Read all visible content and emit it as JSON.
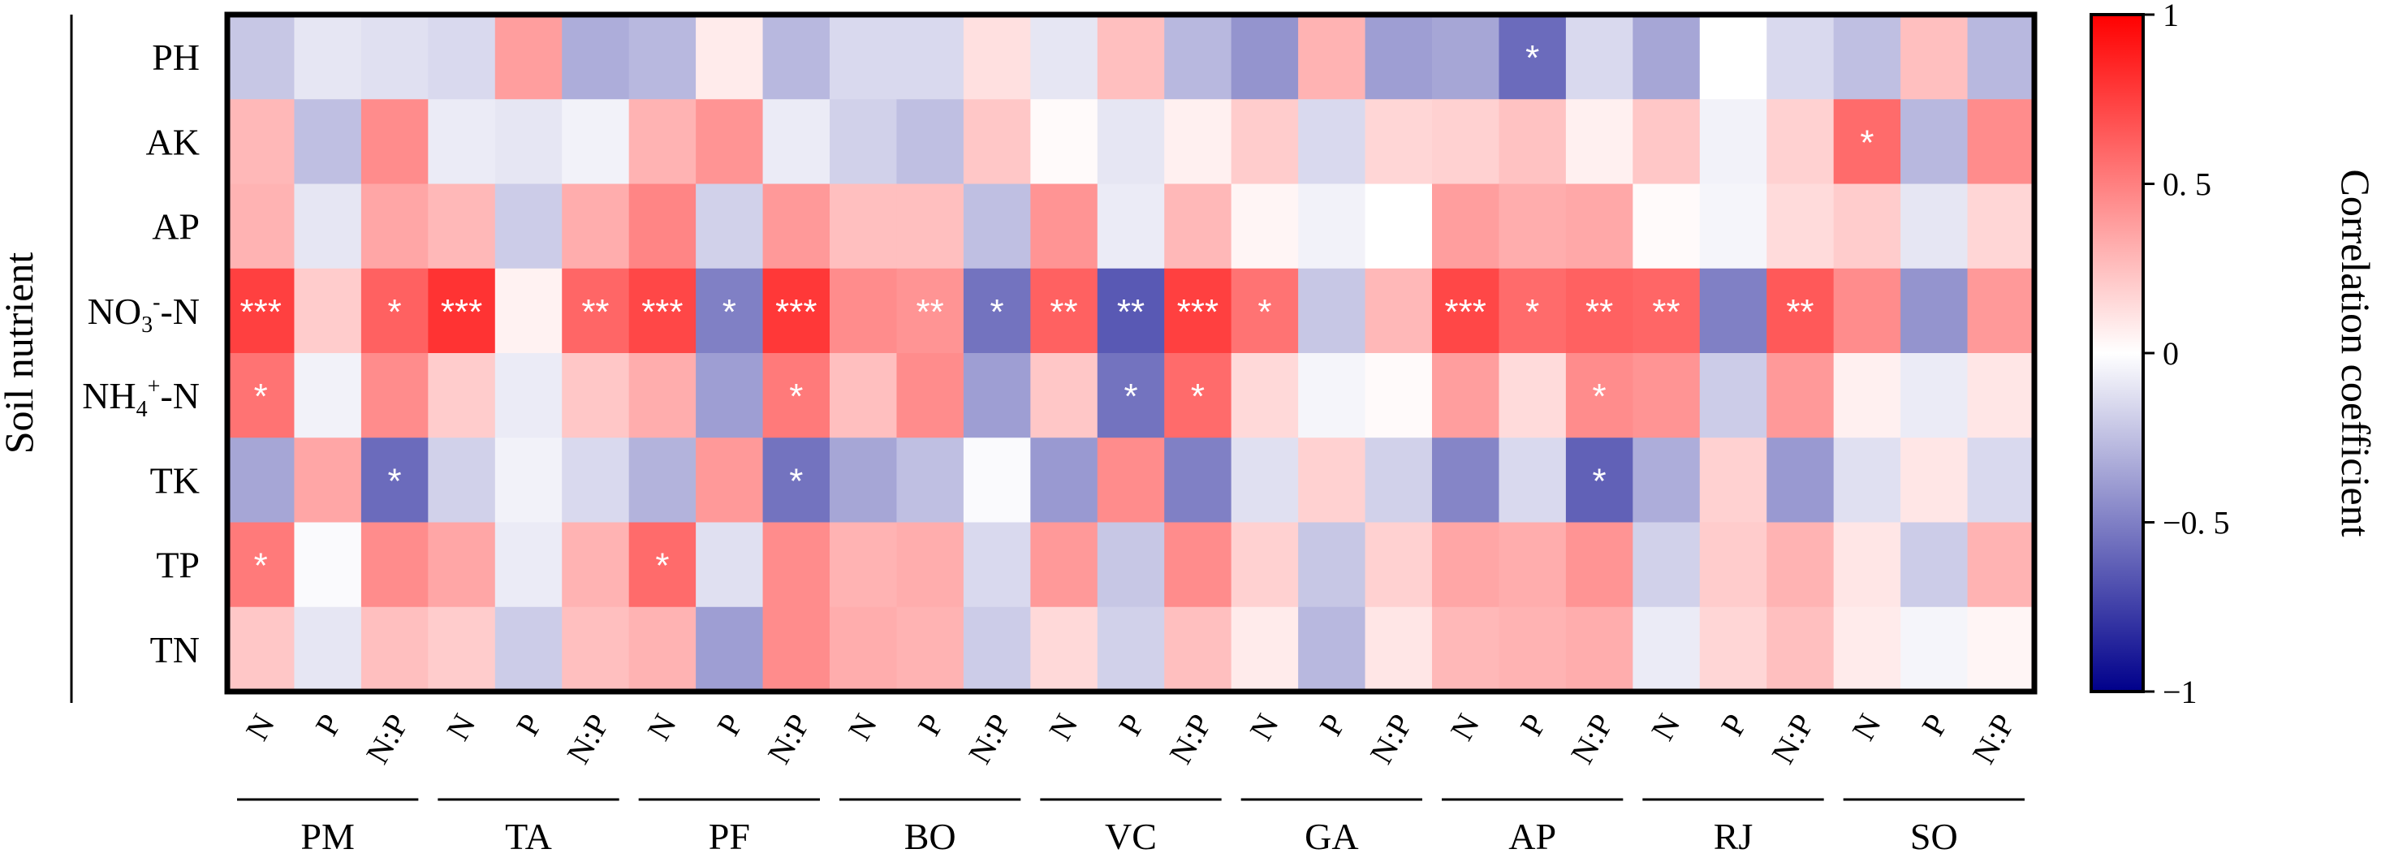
{
  "chart_data": {
    "type": "heatmap",
    "title": "",
    "ylabel": "Soil nutrient",
    "colorbar_label": "Correlation coefficient",
    "colorbar_range": [
      -1,
      1
    ],
    "colorbar_ticks": [
      {
        "v": 1,
        "label": "1"
      },
      {
        "v": 0.5,
        "label": "0. 5"
      },
      {
        "v": 0,
        "label": "0"
      },
      {
        "v": -0.5,
        "label": "−0. 5"
      },
      {
        "v": -1,
        "label": "−1"
      }
    ],
    "colors": {
      "negative": "#00008B",
      "zero": "#FFFFFF",
      "positive": "#FF0000"
    },
    "rows": [
      {
        "base": "PH",
        "sub": "",
        "sup": "",
        "tail": ""
      },
      {
        "base": "AK",
        "sub": "",
        "sup": "",
        "tail": ""
      },
      {
        "base": "AP",
        "sub": "",
        "sup": "",
        "tail": ""
      },
      {
        "base": "NO",
        "sub": "3",
        "sup": "-",
        "tail": "-N"
      },
      {
        "base": "NH",
        "sub": "4",
        "sup": "+",
        "tail": "-N"
      },
      {
        "base": "TK",
        "sub": "",
        "sup": "",
        "tail": ""
      },
      {
        "base": "TP",
        "sub": "",
        "sup": "",
        "tail": ""
      },
      {
        "base": "TN",
        "sub": "",
        "sup": "",
        "tail": ""
      }
    ],
    "columns": [
      "N",
      "P",
      "N:P",
      "N",
      "P",
      "N:P",
      "N",
      "P",
      "N:P",
      "N",
      "P",
      "N:P",
      "N",
      "P",
      "N:P",
      "N",
      "P",
      "N:P",
      "N",
      "P",
      "N:P",
      "N",
      "P",
      "N:P",
      "N",
      "P",
      "N:P"
    ],
    "groups": [
      "PM",
      "TA",
      "PF",
      "BO",
      "VC",
      "GA",
      "AP",
      "RJ",
      "SO"
    ],
    "values": [
      [
        -0.22,
        -0.1,
        -0.12,
        -0.15,
        0.38,
        -0.32,
        -0.28,
        0.08,
        -0.28,
        -0.15,
        -0.15,
        0.12,
        -0.1,
        0.25,
        -0.28,
        -0.42,
        0.3,
        -0.38,
        -0.35,
        -0.58,
        -0.15,
        -0.35,
        0.0,
        -0.15,
        -0.25,
        0.25,
        -0.28
      ],
      [
        0.28,
        -0.25,
        0.45,
        -0.08,
        -0.1,
        -0.05,
        0.3,
        0.42,
        -0.08,
        -0.18,
        -0.25,
        0.22,
        0.02,
        -0.1,
        0.06,
        0.2,
        -0.15,
        0.16,
        0.18,
        0.24,
        0.06,
        0.22,
        -0.05,
        0.18,
        0.58,
        -0.28,
        0.45
      ],
      [
        0.3,
        -0.1,
        0.35,
        0.28,
        -0.2,
        0.32,
        0.48,
        -0.18,
        0.4,
        0.25,
        0.25,
        -0.25,
        0.42,
        -0.08,
        0.28,
        0.04,
        -0.05,
        0.0,
        0.38,
        0.32,
        0.34,
        0.02,
        -0.04,
        0.14,
        0.2,
        -0.1,
        0.16
      ],
      [
        0.75,
        0.2,
        0.62,
        0.8,
        0.05,
        0.6,
        0.72,
        -0.5,
        0.78,
        0.45,
        0.42,
        -0.55,
        0.62,
        -0.65,
        0.75,
        0.55,
        -0.22,
        0.28,
        0.72,
        0.58,
        0.62,
        0.6,
        -0.5,
        0.65,
        0.45,
        -0.42,
        0.4
      ],
      [
        0.55,
        -0.05,
        0.45,
        0.2,
        -0.08,
        0.22,
        0.32,
        -0.38,
        0.52,
        0.25,
        0.45,
        -0.38,
        0.22,
        -0.55,
        0.58,
        0.15,
        -0.04,
        0.02,
        0.38,
        0.14,
        0.45,
        0.42,
        -0.2,
        0.4,
        0.06,
        -0.08,
        0.1
      ],
      [
        -0.35,
        0.35,
        -0.58,
        -0.18,
        -0.05,
        -0.15,
        -0.3,
        0.4,
        -0.55,
        -0.35,
        -0.25,
        -0.02,
        -0.4,
        0.45,
        -0.5,
        -0.12,
        0.18,
        -0.18,
        -0.48,
        -0.15,
        -0.62,
        -0.32,
        0.18,
        -0.4,
        -0.12,
        0.1,
        -0.15
      ],
      [
        0.52,
        -0.02,
        0.45,
        0.35,
        -0.08,
        0.3,
        0.58,
        -0.12,
        0.45,
        0.3,
        0.32,
        -0.15,
        0.4,
        -0.22,
        0.45,
        0.18,
        -0.22,
        0.18,
        0.35,
        0.32,
        0.42,
        -0.18,
        0.2,
        0.3,
        0.1,
        -0.2,
        0.3
      ],
      [
        0.22,
        -0.1,
        0.25,
        0.2,
        -0.2,
        0.25,
        0.3,
        -0.38,
        0.45,
        0.32,
        0.3,
        -0.2,
        0.15,
        -0.18,
        0.25,
        0.08,
        -0.28,
        0.1,
        0.28,
        0.3,
        0.32,
        -0.08,
        0.16,
        0.25,
        0.08,
        -0.04,
        0.04
      ]
    ],
    "significance": [
      [
        "",
        "",
        "",
        "",
        "",
        "",
        "",
        "",
        "",
        "",
        "",
        "",
        "",
        "",
        "",
        "",
        "",
        "",
        "",
        "*",
        "",
        "",
        "",
        "",
        "",
        "",
        ""
      ],
      [
        "",
        "",
        "",
        "",
        "",
        "",
        "",
        "",
        "",
        "",
        "",
        "",
        "",
        "",
        "",
        "",
        "",
        "",
        "",
        "",
        "",
        "",
        "",
        "",
        "*",
        "",
        ""
      ],
      [
        "",
        "",
        "",
        "",
        "",
        "",
        "",
        "",
        "",
        "",
        "",
        "",
        "",
        "",
        "",
        "",
        "",
        "",
        "",
        "",
        "",
        "",
        "",
        "",
        "",
        "",
        ""
      ],
      [
        "***",
        "",
        "*",
        "***",
        "",
        "**",
        "***",
        "*",
        "***",
        "",
        "**",
        "*",
        "**",
        "**",
        "***",
        "*",
        "",
        "",
        "***",
        "*",
        "**",
        "**",
        "",
        "**",
        "",
        "",
        ""
      ],
      [
        "*",
        "",
        "",
        "",
        "",
        "",
        "",
        "",
        "*",
        "",
        "",
        "",
        "",
        "*",
        "*",
        "",
        "",
        "",
        "",
        "",
        "*",
        "",
        "",
        "",
        "",
        "",
        ""
      ],
      [
        "",
        "",
        "*",
        "",
        "",
        "",
        "",
        "",
        "*",
        "",
        "",
        "",
        "",
        "",
        "",
        "",
        "",
        "",
        "",
        "",
        "*",
        "",
        "",
        "",
        "",
        "",
        ""
      ],
      [
        "*",
        "",
        "",
        "",
        "",
        "",
        "*",
        "",
        "",
        "",
        "",
        "",
        "",
        "",
        "",
        "",
        "",
        "",
        "",
        "",
        "",
        "",
        "",
        "",
        "",
        "",
        ""
      ],
      [
        "",
        "",
        "",
        "",
        "",
        "",
        "",
        "",
        "",
        "",
        "",
        "",
        "",
        "",
        "",
        "",
        "",
        "",
        "",
        "",
        "",
        "",
        "",
        "",
        "",
        "",
        ""
      ]
    ]
  }
}
